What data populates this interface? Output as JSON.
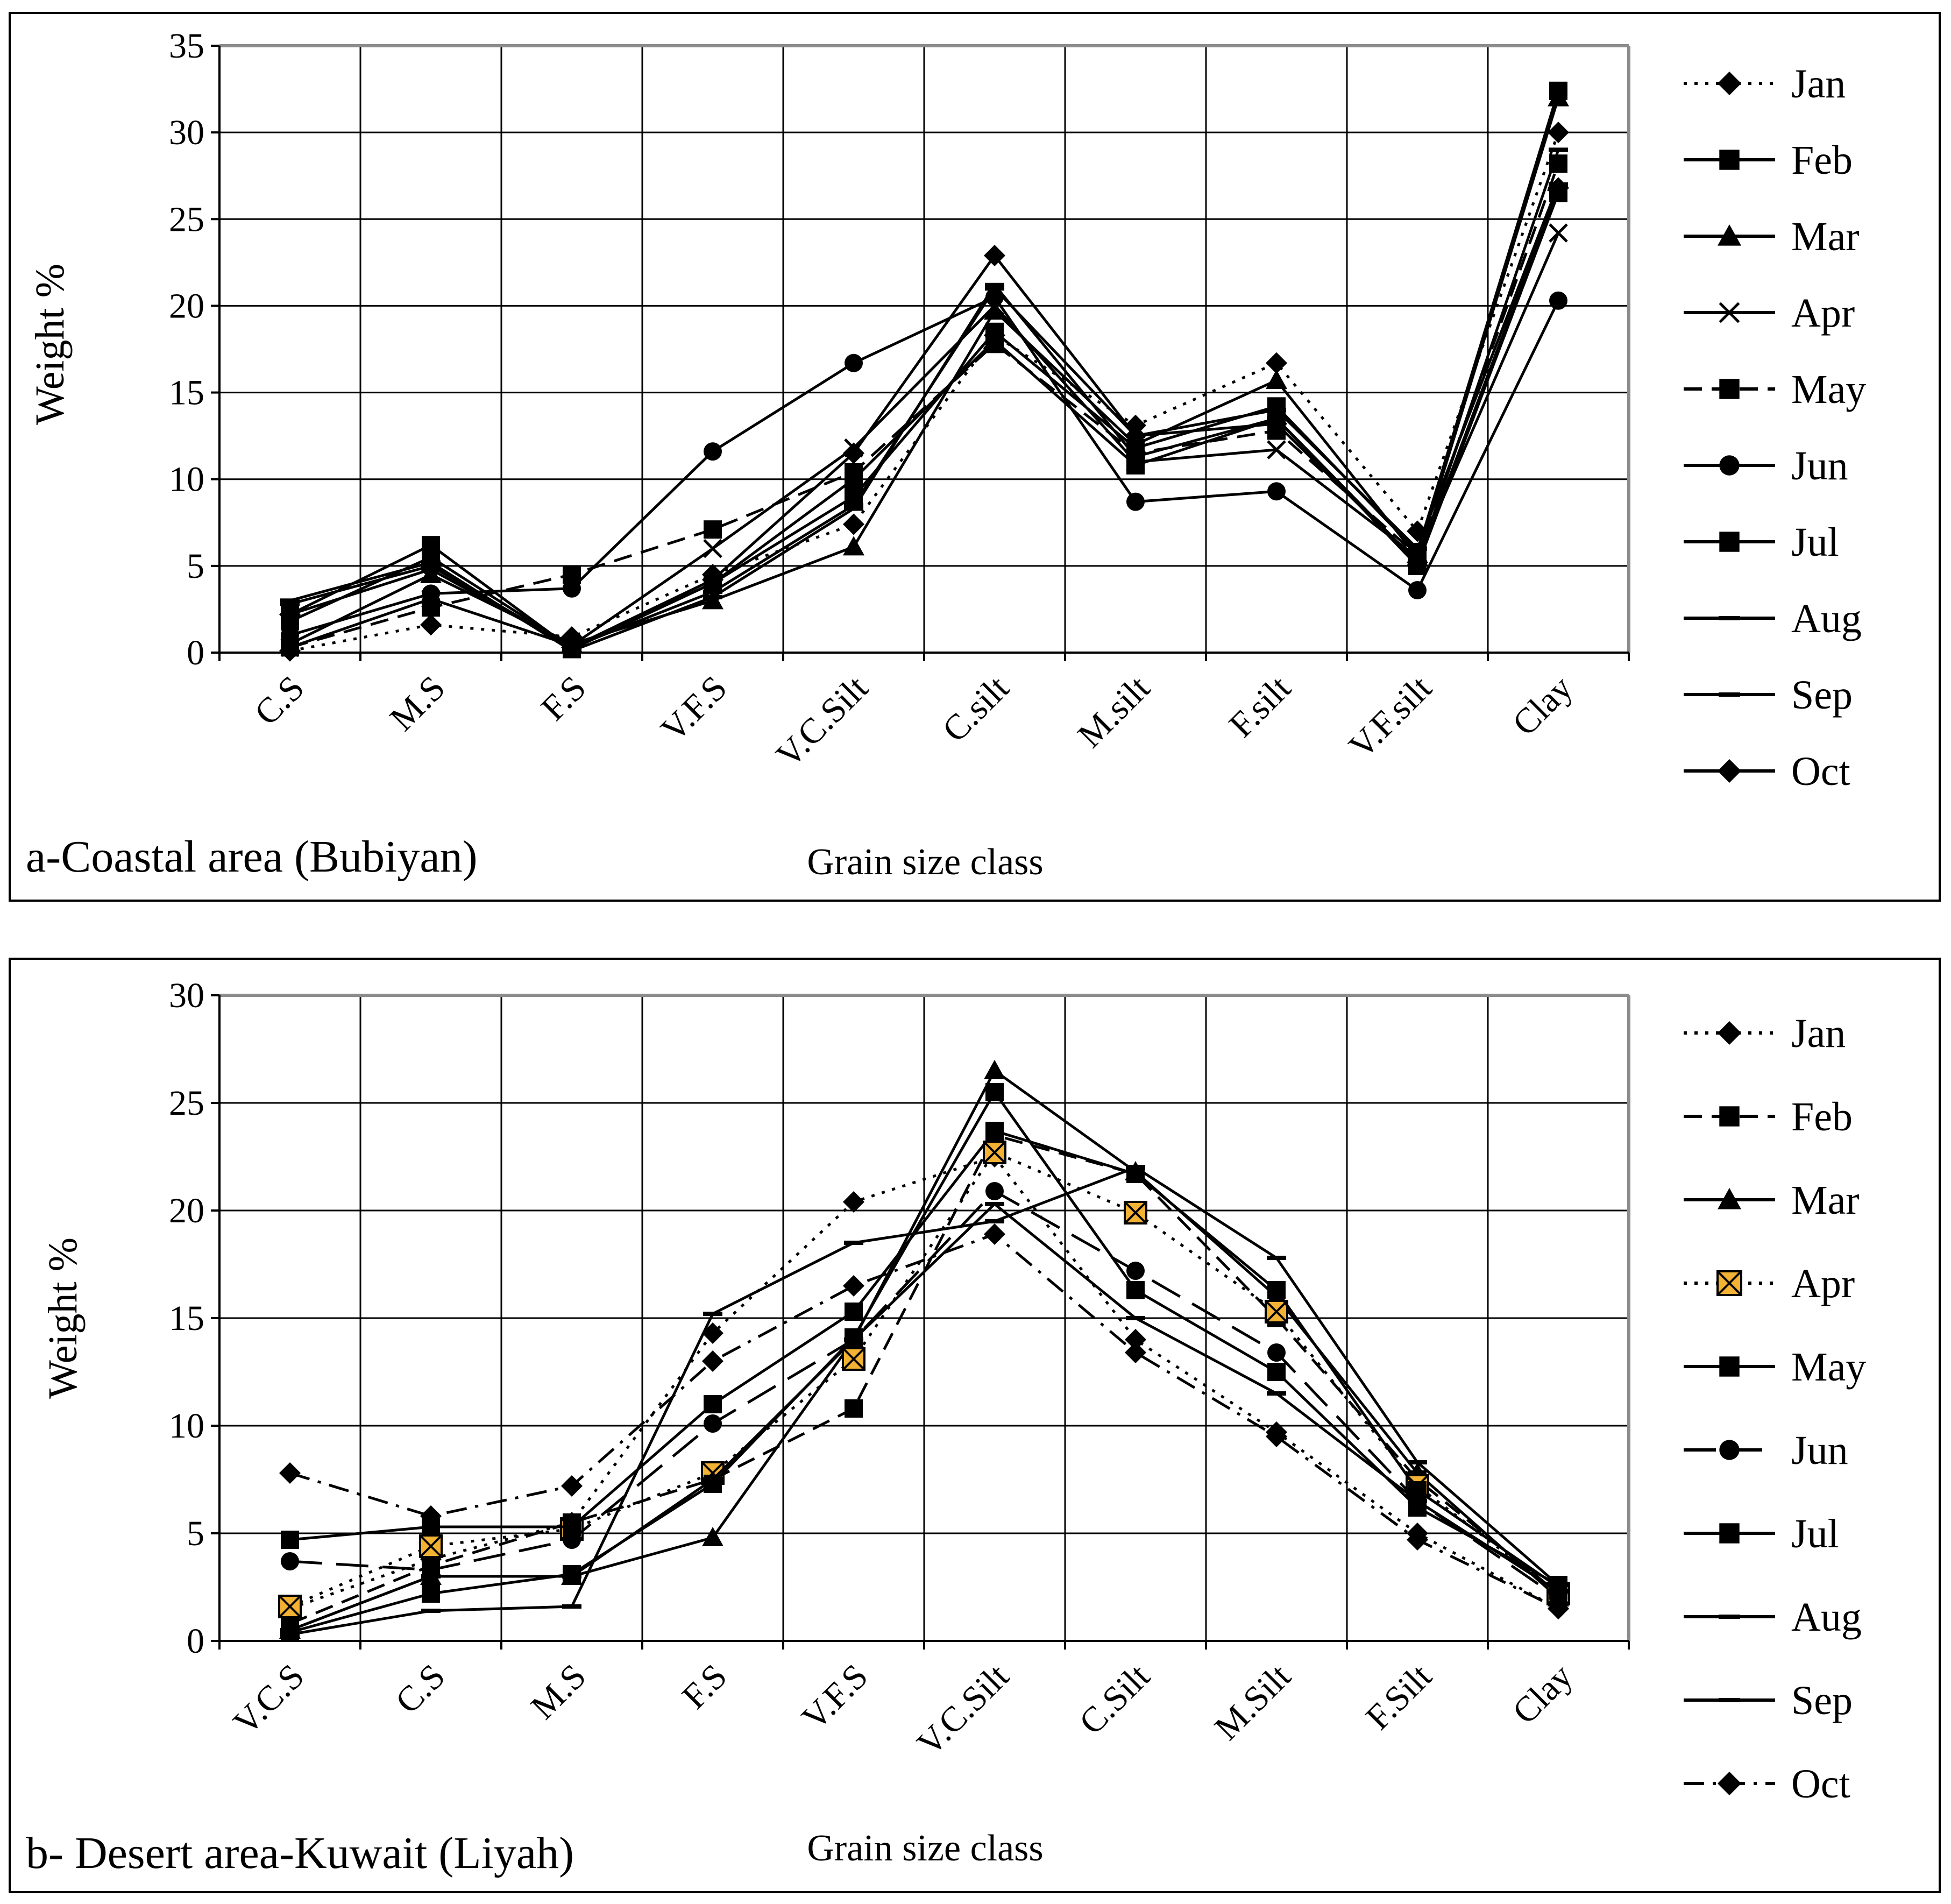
{
  "colors": {
    "line": "#000000",
    "accent_fill": "#f2b233",
    "background": "#ffffff"
  },
  "chart_data": [
    {
      "type": "line",
      "panel_label": "a-Coastal area (Bubiyan)",
      "xlabel": "Grain size class",
      "ylabel": "Weight %",
      "ylim": [
        0,
        35
      ],
      "yticks": [
        "0",
        "5",
        "10",
        "15",
        "20",
        "25",
        "30",
        "35"
      ],
      "grid": true,
      "legend_position": "right",
      "categories": [
        "C.S",
        "M.S",
        "F.S",
        "V.F.S",
        "V.C.Silt",
        "C.silt",
        "M.silt",
        "F.silt",
        "V.F.silt",
        "Clay"
      ],
      "series": [
        {
          "name": "Jan",
          "values": [
            0.1,
            1.6,
            0.9,
            4.5,
            7.4,
            18.3,
            13.1,
            16.7,
            7.0,
            30.0
          ],
          "dash": "dot",
          "marker": "diamond"
        },
        {
          "name": "Feb",
          "values": [
            1.8,
            5.5,
            0.3,
            4.0,
            9.0,
            18.5,
            11.8,
            14.2,
            5.8,
            32.4
          ],
          "dash": "solid",
          "marker": "square"
        },
        {
          "name": "Mar",
          "values": [
            0.5,
            4.5,
            0.5,
            3.0,
            6.1,
            19.7,
            12.0,
            15.7,
            5.5,
            32.0
          ],
          "dash": "solid",
          "marker": "triangle"
        },
        {
          "name": "Apr",
          "values": [
            0.3,
            3.1,
            0.4,
            6.0,
            11.8,
            20.0,
            11.0,
            11.7,
            5.5,
            24.2
          ],
          "dash": "solid",
          "marker": "x"
        },
        {
          "name": "May",
          "values": [
            0.3,
            2.6,
            4.5,
            7.1,
            10.4,
            17.8,
            11.5,
            12.8,
            5.6,
            28.2
          ],
          "dash": "dash",
          "marker": "square"
        },
        {
          "name": "Jun",
          "values": [
            1.0,
            3.4,
            3.7,
            11.6,
            16.7,
            20.5,
            8.7,
            9.3,
            3.6,
            20.3
          ],
          "dash": "solid",
          "marker": "circle"
        },
        {
          "name": "Jul",
          "values": [
            2.2,
            6.2,
            0.2,
            4.0,
            10.0,
            18.0,
            10.8,
            13.5,
            5.0,
            26.5
          ],
          "dash": "solid",
          "marker": "square"
        },
        {
          "name": "Aug",
          "values": [
            2.8,
            5.0,
            0.3,
            3.5,
            8.5,
            21.0,
            12.5,
            14.0,
            6.0,
            27.0
          ],
          "dash": "solid",
          "marker": "dash"
        },
        {
          "name": "Sep",
          "values": [
            3.0,
            5.2,
            0.1,
            3.2,
            8.3,
            21.2,
            11.3,
            13.5,
            5.2,
            29.0
          ],
          "dash": "solid",
          "marker": "dash"
        },
        {
          "name": "Oct",
          "values": [
            2.2,
            4.8,
            0.3,
            4.2,
            11.5,
            22.9,
            12.5,
            13.2,
            5.2,
            26.8
          ],
          "dash": "solid",
          "marker": "diamond"
        }
      ]
    },
    {
      "type": "line",
      "panel_label": "b- Desert area-Kuwait (Liyah)",
      "xlabel": "Grain size class",
      "ylabel": "Weight %",
      "ylim": [
        0,
        30
      ],
      "yticks": [
        "0",
        "5",
        "10",
        "15",
        "20",
        "25",
        "30"
      ],
      "grid": true,
      "legend_position": "right",
      "categories": [
        "V.C.S",
        "C.S",
        "M.S",
        "F.S",
        "V.F.S",
        "V.C.Silt",
        "C.Silt",
        "M.Silt",
        "F.Silt",
        "Clay"
      ],
      "series": [
        {
          "name": "Jan",
          "values": [
            1.5,
            3.8,
            5.5,
            14.3,
            20.4,
            22.5,
            14.0,
            9.7,
            5.0,
            1.5
          ],
          "dash": "dot",
          "marker": "diamond"
        },
        {
          "name": "Feb",
          "values": [
            0.8,
            3.5,
            5.5,
            7.5,
            10.8,
            23.5,
            21.7,
            15.0,
            7.5,
            2.2
          ],
          "dash": "dash",
          "marker": "square"
        },
        {
          "name": "Mar",
          "values": [
            0.5,
            3.0,
            3.0,
            4.8,
            14.0,
            26.5,
            21.8,
            16.0,
            7.8,
            2.0
          ],
          "dash": "solid",
          "marker": "triangle"
        },
        {
          "name": "Apr",
          "values": [
            1.6,
            4.4,
            5.2,
            7.8,
            13.1,
            22.7,
            19.9,
            15.3,
            7.2,
            2.2
          ],
          "dash": "dot",
          "marker": "xbox"
        },
        {
          "name": "May",
          "values": [
            4.7,
            5.3,
            5.3,
            11.0,
            15.3,
            23.7,
            21.7,
            16.3,
            7.0,
            2.5
          ],
          "dash": "solid",
          "marker": "square"
        },
        {
          "name": "Jun",
          "values": [
            3.7,
            3.3,
            4.7,
            10.1,
            14.0,
            20.9,
            17.2,
            13.4,
            6.5,
            2.0
          ],
          "dash": "longdash",
          "marker": "circle"
        },
        {
          "name": "Jul",
          "values": [
            0.4,
            2.2,
            3.1,
            7.3,
            14.1,
            25.5,
            16.3,
            12.5,
            6.2,
            2.6
          ],
          "dash": "solid",
          "marker": "square"
        },
        {
          "name": "Aug",
          "values": [
            0.3,
            1.4,
            1.6,
            15.2,
            18.5,
            19.5,
            22.0,
            17.8,
            8.3,
            2.6
          ],
          "dash": "solid",
          "marker": "dash"
        },
        {
          "name": "Sep",
          "values": [
            0.5,
            3.0,
            3.0,
            7.5,
            14.0,
            20.3,
            15.0,
            11.5,
            6.5,
            2.3
          ],
          "dash": "solid",
          "marker": "dash"
        },
        {
          "name": "Oct",
          "values": [
            7.8,
            5.8,
            7.2,
            13.0,
            16.5,
            18.9,
            13.4,
            9.5,
            4.7,
            1.5
          ],
          "dash": "dashdot",
          "marker": "diamond"
        }
      ]
    }
  ]
}
